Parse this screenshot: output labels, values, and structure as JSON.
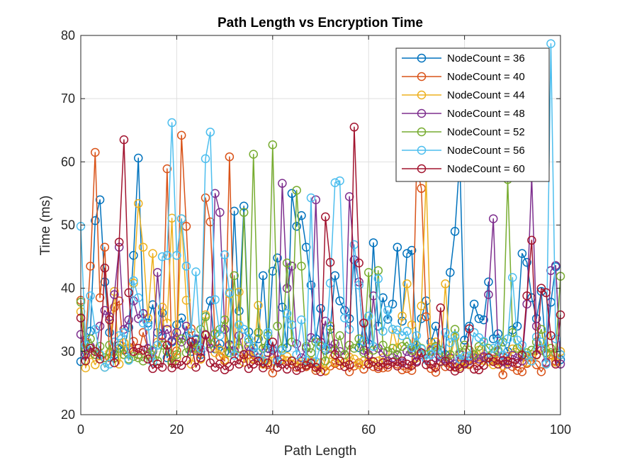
{
  "chart_data": {
    "type": "line",
    "title": "Path Length vs Encryption Time",
    "xlabel": "Path Length",
    "ylabel": "Time (ms)",
    "xlim": [
      0,
      100
    ],
    "ylim": [
      20,
      80
    ],
    "xticks": [
      0,
      20,
      40,
      60,
      80,
      100
    ],
    "yticks": [
      20,
      30,
      40,
      50,
      60,
      70,
      80
    ],
    "grid": true,
    "legend_position": "top-right",
    "marker": "open-circle",
    "series": [
      {
        "name": "NodeCount = 36",
        "color": "#0072BD",
        "values": [
          28.4,
          30.1,
          33.2,
          50.7,
          54.0,
          41.0,
          33.0,
          29.5,
          31.0,
          30.2,
          33.8,
          45.2,
          60.6,
          36.0,
          34.5,
          37.4,
          33.0,
          36.1,
          29.0,
          31.5,
          34.2,
          35.3,
          32.4,
          30.0,
          31.8,
          29.5,
          35.5,
          38.0,
          30.4,
          31.2,
          29.9,
          31.1,
          52.2,
          36.4,
          53.0,
          33.1,
          30.5,
          32.0,
          42.0,
          30.5,
          42.7,
          44.8,
          37.0,
          30.6,
          55.0,
          49.8,
          51.5,
          46.5,
          40.5,
          32.0,
          36.8,
          30.2,
          33.5,
          42.0,
          38.0,
          36.5,
          35.2,
          44.5,
          30.6,
          34.5,
          31.2,
          47.2,
          34.0,
          38.5,
          35.1,
          37.5,
          46.5,
          34.8,
          45.5,
          46.0,
          30.5,
          35.2,
          38.0,
          31.5,
          34.0,
          30.2,
          29.5,
          42.5,
          49.0,
          60.5,
          31.8,
          34.0,
          37.5,
          35.2,
          35.0,
          41.0,
          32.0,
          32.8,
          31.5,
          30.0,
          33.4,
          34.0,
          45.5,
          44.1,
          38.5,
          35.2,
          39.5,
          29.8,
          37.8,
          43.4,
          28.7
        ]
      },
      {
        "name": "NodeCount = 40",
        "color": "#D95319",
        "values": [
          38.1,
          31.5,
          43.5,
          61.5,
          38.5,
          46.5,
          29.0,
          37.0,
          38.0,
          29.5,
          30.4,
          31.6,
          29.5,
          33.0,
          30.4,
          29.0,
          31.0,
          31.5,
          58.9,
          28.5,
          30.1,
          64.2,
          49.8,
          33.6,
          30.2,
          28.8,
          54.3,
          50.5,
          31.5,
          29.2,
          28.5,
          60.8,
          30.2,
          29.3,
          28.9,
          29.5,
          28.7,
          29.0,
          28.2,
          27.9,
          26.6,
          29.5,
          28.7,
          28.5,
          28.0,
          27.5,
          28.4,
          27.6,
          28.3,
          27.0,
          28.2,
          26.9,
          27.7,
          28.1,
          27.8,
          28.3,
          26.8,
          27.7,
          28.2,
          27.2,
          28.1,
          27.6,
          27.3,
          27.4,
          27.5,
          28.3,
          28.0,
          27.1,
          27.3,
          27.0,
          59.2,
          55.8,
          35.5,
          27.3,
          26.7,
          28.5,
          27.6,
          28.1,
          27.5,
          28.0,
          28.5,
          27.9,
          28.7,
          28.5,
          29.0,
          29.1,
          28.8,
          28.5,
          26.3,
          29.2,
          27.6,
          27.0,
          26.8,
          28.1,
          29.1,
          27.9,
          26.8,
          28.1,
          29.5,
          28.5,
          29.5
        ]
      },
      {
        "name": "NodeCount = 44",
        "color": "#EDB120",
        "values": [
          36.3,
          27.4,
          29.5,
          27.9,
          29.3,
          27.5,
          29.8,
          39.5,
          28.0,
          31.4,
          30.5,
          40.8,
          53.4,
          46.5,
          35.3,
          45.5,
          31.5,
          37.0,
          34.5,
          51.1,
          29.0,
          51.0,
          38.1,
          28.0,
          30.5,
          28.8,
          35.8,
          30.5,
          29.8,
          30.2,
          28.7,
          39.1,
          30.9,
          39.4,
          28.3,
          30.2,
          28.9,
          37.3,
          28.0,
          28.7,
          28.5,
          27.5,
          28.8,
          29.2,
          28.6,
          28.3,
          28.0,
          27.9,
          28.5,
          27.4,
          28.2,
          27.0,
          29.5,
          28.3,
          28.5,
          28.2,
          29.1,
          28.8,
          27.9,
          28.5,
          29.2,
          28.3,
          28.5,
          29.0,
          28.5,
          33.5,
          30.6,
          35.6,
          40.7,
          34.2,
          29.0,
          37.2,
          57.5,
          30.6,
          31.5,
          28.3,
          40.7,
          28.8,
          32.2,
          27.6,
          28.4,
          28.1,
          29.3,
          30.2,
          28.6,
          28.4,
          27.9,
          28.7,
          27.7,
          28.4,
          30.4,
          30.5,
          29.7,
          28.3,
          29.5,
          29.4,
          30.5,
          32.5,
          29.4,
          28.3,
          30.0
        ]
      },
      {
        "name": "NodeCount = 48",
        "color": "#7E2F8E",
        "values": [
          32.7,
          29.5,
          30.8,
          29.5,
          34.0,
          36.5,
          35.5,
          39.0,
          46.5,
          33.5,
          35.0,
          38.0,
          35.2,
          36.0,
          30.5,
          30.0,
          42.5,
          32.5,
          33.5,
          31.7,
          33.0,
          31.5,
          34.0,
          30.5,
          32.0,
          30.0,
          32.7,
          30.5,
          55.0,
          52.0,
          33.5,
          31.0,
          30.0,
          32.5,
          29.5,
          30.8,
          29.8,
          28.5,
          30.5,
          29.8,
          30.2,
          28.6,
          56.6,
          40.0,
          43.5,
          31.2,
          29.0,
          30.5,
          32.2,
          54.0,
          31.5,
          34.8,
          30.5,
          31.2,
          30.0,
          29.5,
          54.5,
          44.5,
          41.0,
          30.2,
          29.5,
          38.8,
          30.5,
          29.8,
          28.5,
          29.0,
          29.4,
          28.2,
          30.0,
          29.8,
          28.5,
          29.5,
          28.9,
          30.2,
          29.0,
          28.4,
          28.8,
          29.0,
          28.0,
          29.5,
          28.2,
          28.5,
          29.0,
          28.8,
          29.2,
          39.0,
          51.0,
          30.0,
          28.4,
          28.0,
          29.4,
          29.0,
          28.5,
          37.5,
          57.7,
          34.0,
          30.2,
          28.3,
          42.8,
          43.6,
          28.0
        ]
      },
      {
        "name": "NodeCount = 52",
        "color": "#77AC30",
        "values": [
          37.8,
          30.5,
          32.0,
          29.5,
          30.8,
          29.0,
          31.0,
          29.0,
          30.5,
          29.5,
          28.8,
          29.2,
          29.0,
          28.5,
          29.5,
          30.2,
          28.5,
          31.0,
          30.0,
          28.2,
          29.5,
          32.0,
          29.8,
          31.5,
          30.5,
          33.5,
          35.5,
          31.2,
          32.8,
          33.5,
          35.0,
          29.8,
          42.0,
          30.5,
          52.0,
          31.5,
          61.2,
          33.0,
          30.5,
          32.5,
          62.7,
          34.0,
          30.5,
          44.0,
          31.5,
          55.5,
          43.5,
          30.8,
          29.8,
          31.5,
          30.8,
          28.5,
          34.0,
          30.2,
          32.5,
          29.5,
          31.0,
          30.5,
          32.0,
          29.8,
          42.5,
          30.2,
          42.8,
          31.0,
          30.0,
          30.5,
          29.5,
          30.8,
          31.5,
          30.2,
          31.0,
          30.5,
          29.5,
          30.0,
          30.8,
          30.2,
          28.5,
          29.5,
          33.5,
          29.8,
          31.0,
          30.2,
          29.5,
          30.8,
          31.5,
          30.5,
          29.8,
          30.2,
          31.5,
          57.2,
          33.0,
          30.5,
          29.5,
          29.8,
          30.2,
          31.5,
          33.5,
          29.8,
          30.5,
          29.8,
          41.9
        ]
      },
      {
        "name": "NodeCount = 56",
        "color": "#4DBEEE",
        "values": [
          49.8,
          31.0,
          38.8,
          33.5,
          29.5,
          27.5,
          28.0,
          31.5,
          32.5,
          33.0,
          28.6,
          41.2,
          38.5,
          34.5,
          34.0,
          28.3,
          31.0,
          45.0,
          45.2,
          66.2,
          45.2,
          51.0,
          43.5,
          33.0,
          42.6,
          30.5,
          60.5,
          64.7,
          38.2,
          32.5,
          45.3,
          39.3,
          29.4,
          34.2,
          33.5,
          32.0,
          30.8,
          29.8,
          28.5,
          33.0,
          30.5,
          28.4,
          30.2,
          36.0,
          34.2,
          29.5,
          35.0,
          28.6,
          54.3,
          28.4,
          31.0,
          30.5,
          40.8,
          56.7,
          57.0,
          35.3,
          33.5,
          46.9,
          40.5,
          31.6,
          35.6,
          30.8,
          41.5,
          33.2,
          36.5,
          33.5,
          33.4,
          32.5,
          33.2,
          30.6,
          32.5,
          30.4,
          28.7,
          29.5,
          30.5,
          29.5,
          33.0,
          31.4,
          32.5,
          28.8,
          29.2,
          29.3,
          33.0,
          32.2,
          31.6,
          28.9,
          30.5,
          31.8,
          29.4,
          32.0,
          41.7,
          31.8,
          31.0,
          29.4,
          28.5,
          32.3,
          31.5,
          28.0,
          78.7,
          32.0,
          29.5
        ]
      },
      {
        "name": "NodeCount = 60",
        "color": "#A2142F",
        "values": [
          35.3,
          28.5,
          30.5,
          30.0,
          28.8,
          43.2,
          35.0,
          28.2,
          47.3,
          63.5,
          39.3,
          30.0,
          30.5,
          30.2,
          28.8,
          27.3,
          28.0,
          27.5,
          31.0,
          27.4,
          28.0,
          27.8,
          28.6,
          31.5,
          27.5,
          29.0,
          32.6,
          28.2,
          27.5,
          28.0,
          27.1,
          27.6,
          28.5,
          28.0,
          29.5,
          27.3,
          28.0,
          28.5,
          27.4,
          28.2,
          31.5,
          27.5,
          28.0,
          27.2,
          28.5,
          27.0,
          27.4,
          27.8,
          28.1,
          27.5,
          26.8,
          51.3,
          44.1,
          29.5,
          28.5,
          27.6,
          27.9,
          65.5,
          44.0,
          34.5,
          28.0,
          28.4,
          27.6,
          28.2,
          27.9,
          28.3,
          27.7,
          28.5,
          28.0,
          27.8,
          28.3,
          29.8,
          27.9,
          28.0,
          27.5,
          36.9,
          28.5,
          27.6,
          26.9,
          27.3,
          28.0,
          33.6,
          27.2,
          27.1,
          27.8,
          29.0,
          28.4,
          28.0,
          28.6,
          28.5,
          28.3,
          28.1,
          29.4,
          38.8,
          47.6,
          29.5,
          40.0,
          39.3,
          32.5,
          28.0,
          35.8
        ]
      }
    ]
  }
}
